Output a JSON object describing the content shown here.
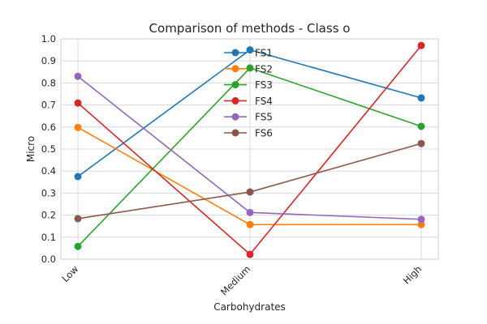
{
  "chart_data": {
    "type": "line",
    "title": "Comparison of methods - Class o",
    "xlabel": "Carbohydrates",
    "ylabel": "Micro",
    "categories": [
      "Low",
      "Medium",
      "High"
    ],
    "ylim": [
      0.0,
      1.0
    ],
    "yticks": [
      "0.0",
      "0.1",
      "0.2",
      "0.3",
      "0.4",
      "0.5",
      "0.6",
      "0.7",
      "0.8",
      "0.9",
      "1.0"
    ],
    "grid": true,
    "legend_position": "top-center",
    "series": [
      {
        "name": "FS1",
        "color": "#1f77b4",
        "values": [
          0.375,
          0.95,
          0.732
        ]
      },
      {
        "name": "FS2",
        "color": "#ff7f0e",
        "values": [
          0.598,
          0.157,
          0.157
        ]
      },
      {
        "name": "FS3",
        "color": "#2ca02c",
        "values": [
          0.058,
          0.868,
          0.603
        ]
      },
      {
        "name": "FS4",
        "color": "#d62728",
        "values": [
          0.709,
          0.022,
          0.97
        ]
      },
      {
        "name": "FS5",
        "color": "#9467bd",
        "values": [
          0.83,
          0.212,
          0.181
        ]
      },
      {
        "name": "FS6",
        "color": "#8c564b",
        "values": [
          0.184,
          0.305,
          0.525
        ]
      }
    ]
  }
}
